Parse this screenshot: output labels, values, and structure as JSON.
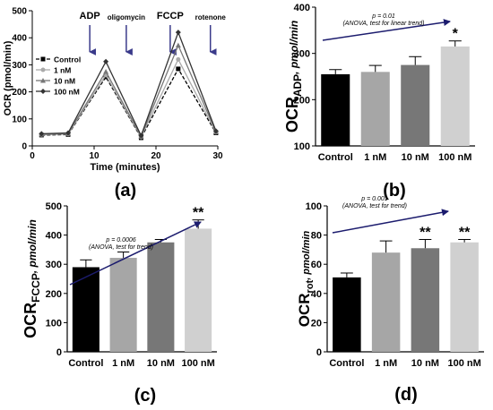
{
  "chart_data": [
    {
      "panel": "(a)",
      "type": "line",
      "ylabel": "OCR (pmol/min)",
      "xlabel": "Time (minutes)",
      "xlim": [
        0,
        30
      ],
      "ylim": [
        0,
        500
      ],
      "xticks": [
        "0",
        "10",
        "20",
        "30"
      ],
      "yticks": [
        "0",
        "100",
        "200",
        "300",
        "400",
        "500"
      ],
      "annotations": [
        {
          "label": "ADP",
          "x": 9.3
        },
        {
          "label": "oligomycin",
          "x": 15.2
        },
        {
          "label": "FCCP",
          "x": 22.3
        },
        {
          "label": "rotenone",
          "x": 28.8
        }
      ],
      "x": [
        1.5,
        5.8,
        11.9,
        17.6,
        23.6,
        29.7
      ],
      "series": [
        {
          "name": "Control",
          "values": [
            40,
            42,
            255,
            30,
            285,
            48
          ],
          "color": "#000000",
          "dash": true,
          "marker": "square"
        },
        {
          "name": "1 nM",
          "values": [
            42,
            44,
            262,
            33,
            320,
            50
          ],
          "color": "#aaaaaa",
          "dash": false,
          "marker": "circle"
        },
        {
          "name": "10 nM",
          "values": [
            43,
            46,
            275,
            35,
            372,
            52
          ],
          "color": "#777777",
          "dash": false,
          "marker": "triangle"
        },
        {
          "name": "100 nM",
          "values": [
            45,
            48,
            312,
            38,
            420,
            55
          ],
          "color": "#333333",
          "dash": false,
          "marker": "diamond"
        }
      ],
      "legend_position": "top-left"
    },
    {
      "panel": "(b)",
      "type": "bar",
      "ylabel_main": "OCR",
      "ylabel_sub": "ADP",
      "ylabel_unit": ", pmol/min",
      "categories": [
        "Control",
        "1 nM",
        "10 nM",
        "100 nM"
      ],
      "values": [
        255,
        260,
        275,
        315
      ],
      "errors": [
        10,
        14,
        18,
        12
      ],
      "colors": [
        "#000000",
        "#a6a6a6",
        "#777777",
        "#d0d0d0"
      ],
      "ylim": [
        100,
        400
      ],
      "yticks": [
        "100",
        "200",
        "300",
        "400"
      ],
      "stars": [
        "",
        "",
        "",
        "*"
      ],
      "trend_text": [
        "p = 0.01",
        "(ANOVA, test for linear trend)"
      ]
    },
    {
      "panel": "(c)",
      "type": "bar",
      "ylabel_main": "OCR",
      "ylabel_sub": "FCCP",
      "ylabel_unit": ", pmol/min",
      "categories": [
        "Control",
        "1 nM",
        "10 nM",
        "100 nM"
      ],
      "values": [
        290,
        322,
        375,
        422
      ],
      "errors": [
        25,
        20,
        10,
        30
      ],
      "colors": [
        "#000000",
        "#a6a6a6",
        "#777777",
        "#d0d0d0"
      ],
      "ylim": [
        0,
        500
      ],
      "yticks": [
        "0",
        "100",
        "200",
        "300",
        "400",
        "500"
      ],
      "stars": [
        "",
        "",
        "",
        "**"
      ],
      "trend_text": [
        "p = 0.0006",
        "(ANOVA, test for trend)"
      ]
    },
    {
      "panel": "(d)",
      "type": "bar",
      "ylabel_main": "OCR",
      "ylabel_sub": "rot",
      "ylabel_unit": ", pmol/min",
      "categories": [
        "Control",
        "1 nM",
        "10 nM",
        "100 nM"
      ],
      "values": [
        51,
        68,
        71,
        75
      ],
      "errors": [
        3,
        8,
        6,
        2
      ],
      "colors": [
        "#000000",
        "#a6a6a6",
        "#777777",
        "#d0d0d0"
      ],
      "ylim": [
        0,
        100
      ],
      "yticks": [
        "0",
        "20",
        "40",
        "60",
        "80",
        "100"
      ],
      "stars": [
        "",
        "",
        "**",
        "**"
      ],
      "trend_text": [
        "p = 0.001",
        "(ANOVA, test for trend)"
      ]
    }
  ]
}
